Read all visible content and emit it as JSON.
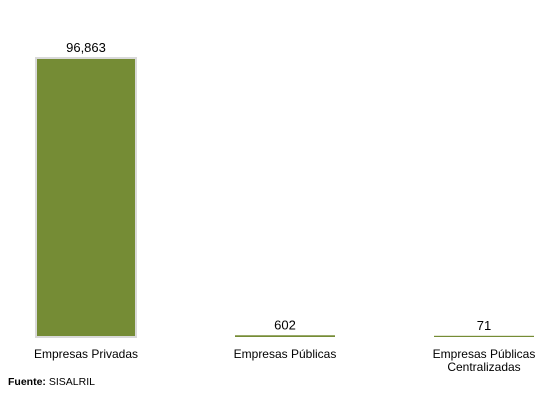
{
  "chart_data": {
    "type": "bar",
    "categories": [
      "Empresas Privadas",
      "Empresas Públicas",
      "Empresas Públicas Centralizadas"
    ],
    "values": [
      96863,
      602,
      71
    ],
    "data_labels": [
      "96,863",
      "602",
      "71"
    ],
    "title": "",
    "xlabel": "",
    "ylabel": "",
    "ylim": [
      0,
      96863
    ],
    "grid": false,
    "legend": "none",
    "colors": [
      "#758c35",
      "#758c35",
      "#758c35"
    ],
    "border_color": "#d9d9d9"
  },
  "footer": {
    "source_label": "Fuente:",
    "source_value": "SISALRIL"
  }
}
